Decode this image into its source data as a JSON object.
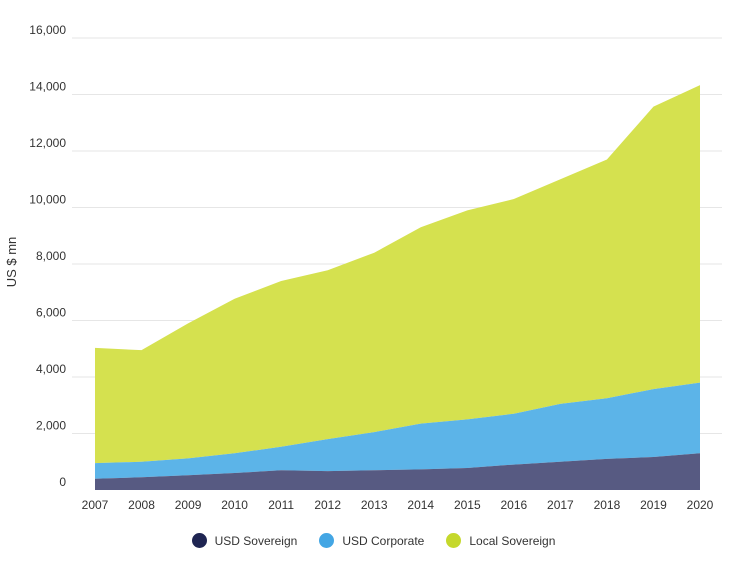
{
  "chart_data": {
    "type": "area",
    "stacked": true,
    "ylabel": "US $ mn",
    "xlabel": "",
    "ylim": [
      0,
      16000
    ],
    "yticks": [
      "0",
      "2,000",
      "4,000",
      "6,000",
      "8,000",
      "10,000",
      "12,000",
      "14,000",
      "16,000"
    ],
    "ytick_values": [
      0,
      2000,
      4000,
      6000,
      8000,
      10000,
      12000,
      14000,
      16000
    ],
    "categories": [
      "2007",
      "2008",
      "2009",
      "2010",
      "2011",
      "2012",
      "2013",
      "2014",
      "2015",
      "2016",
      "2017",
      "2018",
      "2019",
      "2020"
    ],
    "series": [
      {
        "name": "USD Sovereign",
        "color": "#575a82",
        "legend_color": "#1f2552",
        "values": [
          400,
          450,
          520,
          600,
          700,
          670,
          700,
          730,
          780,
          900,
          1000,
          1100,
          1170,
          1300
        ]
      },
      {
        "name": "USD Corporate",
        "color": "#5cb4e8",
        "legend_color": "#43a6e4",
        "values": [
          550,
          550,
          600,
          700,
          830,
          1130,
          1350,
          1620,
          1720,
          1800,
          2050,
          2150,
          2400,
          2500
        ]
      },
      {
        "name": "Local Sovereign",
        "color": "#d5e14f",
        "legend_color": "#c5d82c",
        "values": [
          4080,
          3950,
          4780,
          5470,
          5870,
          5980,
          6350,
          6950,
          7400,
          7600,
          7950,
          8450,
          10000,
          10530
        ]
      }
    ],
    "grid": true,
    "legend_position": "bottom"
  }
}
